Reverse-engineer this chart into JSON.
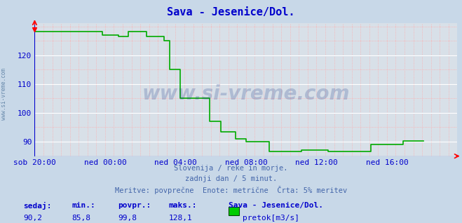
{
  "title": "Sava - Jesenice/Dol.",
  "title_color": "#0000cc",
  "bg_color": "#c8d8e8",
  "plot_bg_color": "#d8e0e8",
  "grid_color_white": "#ffffff",
  "grid_color_pink": "#ffaaaa",
  "line_color": "#00aa00",
  "axis_color": "#0000cc",
  "tick_color": "#0000cc",
  "x_tick_labels": [
    "sob 20:00",
    "ned 00:00",
    "ned 04:00",
    "ned 08:00",
    "ned 12:00",
    "ned 16:00"
  ],
  "x_tick_positions": [
    0,
    48,
    96,
    144,
    192,
    240
  ],
  "ylim_low": 85.0,
  "ylim_high": 131.0,
  "yticks": [
    90,
    100,
    110,
    120
  ],
  "subtitle1": "Slovenija / reke in morje.",
  "subtitle2": "zadnji dan / 5 minut.",
  "subtitle3": "Meritve: povprečne  Enote: metrične  Črta: 5% meritev",
  "subtitle_color": "#4466aa",
  "footer_label_color": "#0000cc",
  "footer_value_color": "#0000cc",
  "sedaj_label": "sedaj:",
  "min_label": "min.:",
  "povpr_label": "povpr.:",
  "maks_label": "maks.:",
  "station_label": "Sava - Jesenice/Dol.",
  "sedaj_val": "90,2",
  "min_val": "85,8",
  "povpr_val": "99,8",
  "maks_val": "128,1",
  "legend_label": "pretok[m3/s]",
  "legend_color": "#00cc00",
  "watermark": "www.si-vreme.com",
  "watermark_color": "#1a3a8a",
  "sidewatermark": "www.si-vreme.com",
  "sidewatermark_color": "#6688aa",
  "total_points": 289,
  "y_data": [
    128.1,
    128.1,
    128.1,
    128.1,
    128.1,
    128.1,
    128.1,
    128.1,
    128.1,
    128.1,
    128.1,
    128.1,
    128.1,
    128.1,
    128.1,
    128.1,
    128.1,
    128.1,
    128.1,
    128.1,
    128.1,
    128.1,
    128.1,
    128.1,
    128.1,
    128.1,
    128.1,
    128.1,
    128.1,
    128.1,
    128.1,
    128.1,
    128.1,
    128.1,
    128.1,
    128.1,
    128.1,
    128.1,
    128.1,
    128.1,
    128.1,
    128.1,
    128.1,
    128.1,
    128.1,
    128.1,
    127.0,
    127.0,
    127.0,
    127.0,
    127.0,
    127.0,
    127.0,
    127.0,
    127.0,
    127.0,
    127.0,
    126.5,
    126.5,
    126.5,
    126.5,
    126.5,
    126.5,
    126.5,
    128.1,
    128.1,
    128.1,
    128.1,
    128.1,
    128.1,
    128.1,
    128.1,
    128.1,
    128.1,
    128.1,
    128.1,
    126.5,
    126.5,
    126.5,
    126.5,
    126.5,
    126.5,
    126.5,
    126.5,
    126.5,
    126.5,
    126.5,
    126.5,
    125.0,
    125.0,
    125.0,
    125.0,
    115.0,
    115.0,
    115.0,
    115.0,
    115.0,
    115.0,
    115.0,
    105.0,
    105.0,
    105.0,
    105.0,
    105.0,
    105.0,
    105.0,
    105.0,
    105.0,
    105.0,
    105.0,
    105.0,
    105.0,
    105.0,
    105.0,
    105.0,
    105.0,
    105.0,
    105.0,
    105.0,
    97.0,
    97.0,
    97.0,
    97.0,
    97.0,
    97.0,
    97.0,
    97.0,
    93.5,
    93.5,
    93.5,
    93.5,
    93.5,
    93.5,
    93.5,
    93.5,
    93.5,
    93.5,
    91.0,
    91.0,
    91.0,
    91.0,
    91.0,
    91.0,
    91.0,
    90.0,
    90.0,
    90.0,
    90.0,
    90.0,
    90.0,
    90.0,
    90.0,
    90.0,
    90.0,
    90.0,
    90.0,
    90.0,
    90.0,
    90.0,
    90.0,
    86.5,
    86.5,
    86.5,
    86.5,
    86.5,
    86.5,
    86.5,
    86.5,
    86.5,
    86.5,
    86.5,
    86.5,
    86.5,
    86.5,
    86.5,
    86.5,
    86.5,
    86.5,
    86.5,
    86.5,
    86.5,
    86.5,
    87.0,
    87.0,
    87.0,
    87.0,
    87.0,
    87.0,
    87.0,
    87.0,
    87.0,
    87.0,
    87.0,
    87.0,
    87.0,
    87.0,
    87.0,
    87.0,
    87.0,
    87.0,
    86.5,
    86.5,
    86.5,
    86.5,
    86.5,
    86.5,
    86.5,
    86.5,
    86.5,
    86.5,
    86.5,
    86.5,
    86.5,
    86.5,
    86.5,
    86.5,
    86.5,
    86.5,
    86.5,
    86.5,
    86.5,
    86.5,
    86.5,
    86.5,
    86.5,
    86.5,
    86.5,
    86.5,
    86.5,
    89.0,
    89.0,
    89.0,
    89.0,
    89.0,
    89.0,
    89.0,
    89.0,
    89.0,
    89.0,
    89.0,
    89.0,
    89.0,
    89.0,
    89.0,
    89.0,
    89.0,
    89.0,
    89.0,
    89.0,
    89.0,
    89.0,
    90.2,
    90.2,
    90.2,
    90.2,
    90.2,
    90.2,
    90.2,
    90.2,
    90.2,
    90.2,
    90.2,
    90.2,
    90.2,
    90.2,
    90.2
  ]
}
